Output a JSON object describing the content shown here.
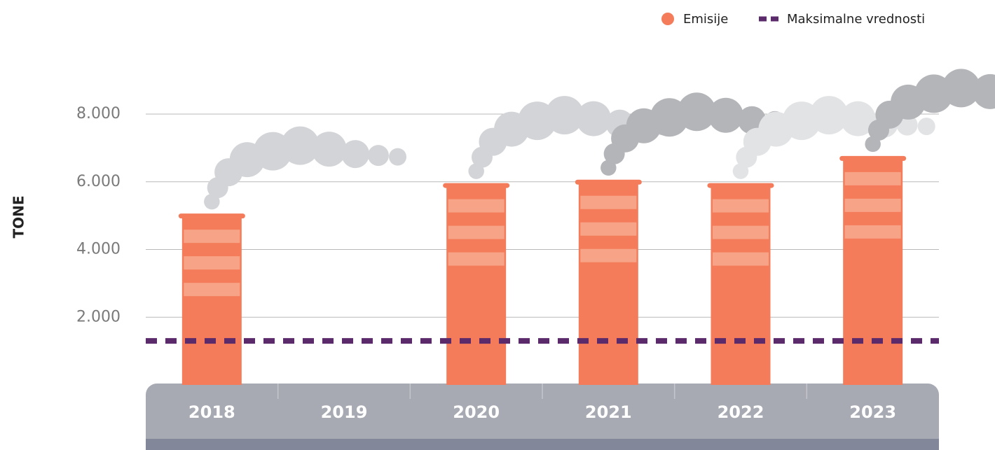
{
  "chart_data": {
    "type": "bar",
    "y_axis_label": "TONE",
    "categories": [
      "2018",
      "2019",
      "2020",
      "2021",
      "2022",
      "2023"
    ],
    "series": [
      {
        "name": "Emisije",
        "color": "#f47c5a",
        "values": [
          5000,
          null,
          5900,
          6000,
          5900,
          6700
        ]
      }
    ],
    "reference_line": {
      "name": "Maksimalne vrednosti",
      "color": "#5b2a6b",
      "value": 1300
    },
    "ylim": [
      0,
      8000
    ],
    "yticks": [
      {
        "value": 2000,
        "label": "2.000"
      },
      {
        "value": 4000,
        "label": "4.000"
      },
      {
        "value": 6000,
        "label": "6.000"
      },
      {
        "value": 8000,
        "label": "8.000"
      }
    ],
    "grid": true
  }
}
